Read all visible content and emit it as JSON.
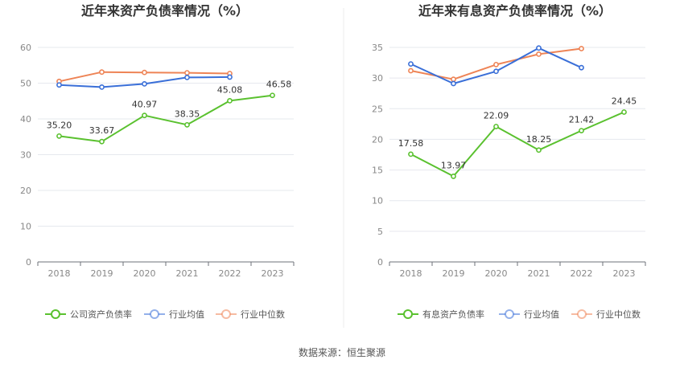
{
  "source": "数据来源：恒生聚源",
  "colors": {
    "green": "#5ac12f",
    "blue": "#3a6fd8",
    "orange": "#ee8456",
    "grid": "#e6e8ee",
    "axis": "#6e7079"
  },
  "chart_data": [
    {
      "type": "line",
      "title": "近年来资产负债率情况（%）",
      "categories": [
        "2018",
        "2019",
        "2020",
        "2021",
        "2022",
        "2023"
      ],
      "ylim": [
        0,
        60
      ],
      "yticks": [
        0,
        10,
        20,
        30,
        40,
        50,
        60
      ],
      "grid": true,
      "legend_position": "bottom",
      "series": [
        {
          "name": "公司资产负债率",
          "color": "#5ac12f",
          "values": [
            35.2,
            33.67,
            40.97,
            38.35,
            45.08,
            46.58
          ],
          "labels": [
            "35.20",
            "33.67",
            "40.97",
            "38.35",
            "45.08",
            "46.58"
          ]
        },
        {
          "name": "行业均值",
          "color": "#3a6fd8",
          "values": [
            49.5,
            48.9,
            49.8,
            51.6,
            51.7,
            null
          ]
        },
        {
          "name": "行业中位数",
          "color": "#ee8456",
          "values": [
            50.5,
            53.1,
            53.0,
            52.9,
            52.7,
            null
          ]
        }
      ]
    },
    {
      "type": "line",
      "title": "近年来有息资产负债率情况（%）",
      "categories": [
        "2018",
        "2019",
        "2020",
        "2021",
        "2022",
        "2023"
      ],
      "ylim": [
        0,
        35
      ],
      "yticks": [
        0,
        5,
        10,
        15,
        20,
        25,
        30,
        35
      ],
      "grid": true,
      "legend_position": "bottom",
      "series": [
        {
          "name": "有息资产负债率",
          "color": "#5ac12f",
          "values": [
            17.58,
            13.97,
            22.09,
            18.25,
            21.42,
            24.45
          ],
          "labels": [
            "17.58",
            "13.97",
            "22.09",
            "18.25",
            "21.42",
            "24.45"
          ]
        },
        {
          "name": "行业均值",
          "color": "#3a6fd8",
          "values": [
            32.3,
            29.1,
            31.1,
            34.9,
            31.7,
            null
          ]
        },
        {
          "name": "行业中位数",
          "color": "#ee8456",
          "values": [
            31.2,
            29.8,
            32.2,
            33.9,
            34.8,
            null
          ]
        }
      ]
    }
  ]
}
